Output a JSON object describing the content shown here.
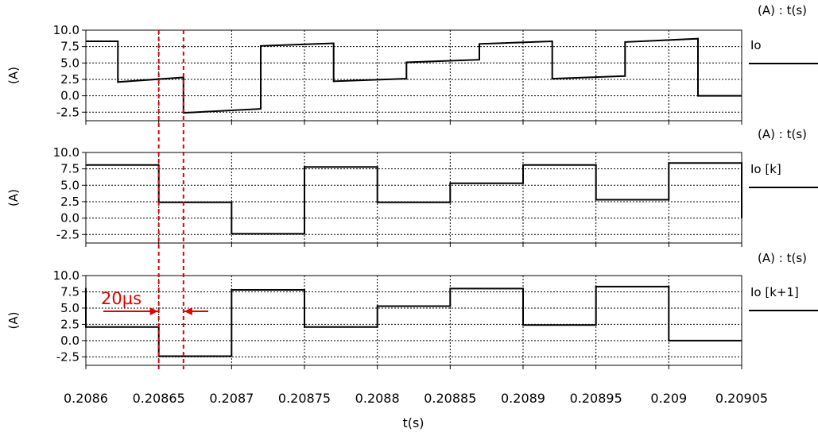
{
  "chart_data": {
    "type": "line",
    "xlabel": "t(s)",
    "xlim": [
      0.2086,
      0.20905
    ],
    "x_ticks": [
      "0.2086",
      "0.20865",
      "0.2087",
      "0.20875",
      "0.2088",
      "0.20885",
      "0.2089",
      "0.20895",
      "0.209",
      "0.20905"
    ],
    "x_tick_values": [
      0.2086,
      0.20865,
      0.2087,
      0.20875,
      0.2088,
      0.20885,
      0.2089,
      0.20895,
      0.209,
      0.20905
    ],
    "grid": true,
    "markers": [
      0.20865,
      0.208667
    ],
    "annotation": "20µs",
    "subplots": [
      {
        "ylabel": "(A)",
        "corner_label": "(A) : t(s)",
        "series_name": "Io",
        "ylim": [
          -3.8,
          10.0
        ],
        "y_ticks": [
          "10.0",
          "7.5",
          "5.0",
          "2.5",
          "0.0",
          "-2.5"
        ],
        "y_tick_values": [
          10.0,
          7.5,
          5.0,
          2.5,
          0.0,
          -2.5
        ],
        "x": [
          0.2086,
          0.208622,
          0.208622,
          0.208667,
          0.208667,
          0.20872,
          0.20872,
          0.20877,
          0.20877,
          0.20882,
          0.20882,
          0.20887,
          0.20887,
          0.20892,
          0.20892,
          0.20897,
          0.20897,
          0.20902,
          0.20902,
          0.20905
        ],
        "y": [
          8.3,
          8.3,
          2.1,
          2.8,
          -2.6,
          -2.0,
          7.6,
          8.0,
          2.2,
          2.6,
          5.1,
          5.5,
          7.9,
          8.3,
          2.6,
          3.0,
          8.2,
          8.7,
          0.0,
          0.0
        ]
      },
      {
        "ylabel": "(A)",
        "corner_label": "(A) : t(s)",
        "series_name": "Io [k]",
        "ylim": [
          -3.8,
          10.0
        ],
        "y_ticks": [
          "10.0",
          "7.5",
          "5.0",
          "2.5",
          "0.0",
          "-2.5"
        ],
        "y_tick_values": [
          10.0,
          7.5,
          5.0,
          2.5,
          0.0,
          -2.5
        ],
        "x": [
          0.2086,
          0.20865,
          0.20865,
          0.2087,
          0.2087,
          0.20875,
          0.20875,
          0.2088,
          0.2088,
          0.20885,
          0.20885,
          0.2089,
          0.2089,
          0.20895,
          0.20895,
          0.209,
          0.209,
          0.20905,
          0.20905
        ],
        "y": [
          8.1,
          8.1,
          2.4,
          2.4,
          -2.4,
          -2.4,
          7.8,
          7.8,
          2.4,
          2.4,
          5.3,
          5.3,
          8.1,
          8.1,
          2.8,
          2.8,
          8.4,
          8.4,
          0.0
        ]
      },
      {
        "ylabel": "(A)",
        "corner_label": "(A) : t(s)",
        "series_name": "Io [k+1]",
        "ylim": [
          -3.8,
          10.0
        ],
        "y_ticks": [
          "10.0",
          "7.5",
          "5.0",
          "2.5",
          "0.0",
          "-2.5"
        ],
        "y_tick_values": [
          10.0,
          7.5,
          5.0,
          2.5,
          0.0,
          -2.5
        ],
        "x": [
          0.2086,
          0.2086,
          0.20865,
          0.20865,
          0.2087,
          0.2087,
          0.20875,
          0.20875,
          0.2088,
          0.2088,
          0.20885,
          0.20885,
          0.2089,
          0.2089,
          0.20895,
          0.20895,
          0.209,
          0.209,
          0.20905
        ],
        "y": [
          8.1,
          2.1,
          2.1,
          -2.4,
          -2.4,
          7.8,
          7.8,
          2.1,
          2.1,
          5.3,
          5.3,
          8.0,
          8.0,
          2.4,
          2.4,
          8.3,
          8.3,
          0.0,
          0.0
        ]
      }
    ]
  }
}
